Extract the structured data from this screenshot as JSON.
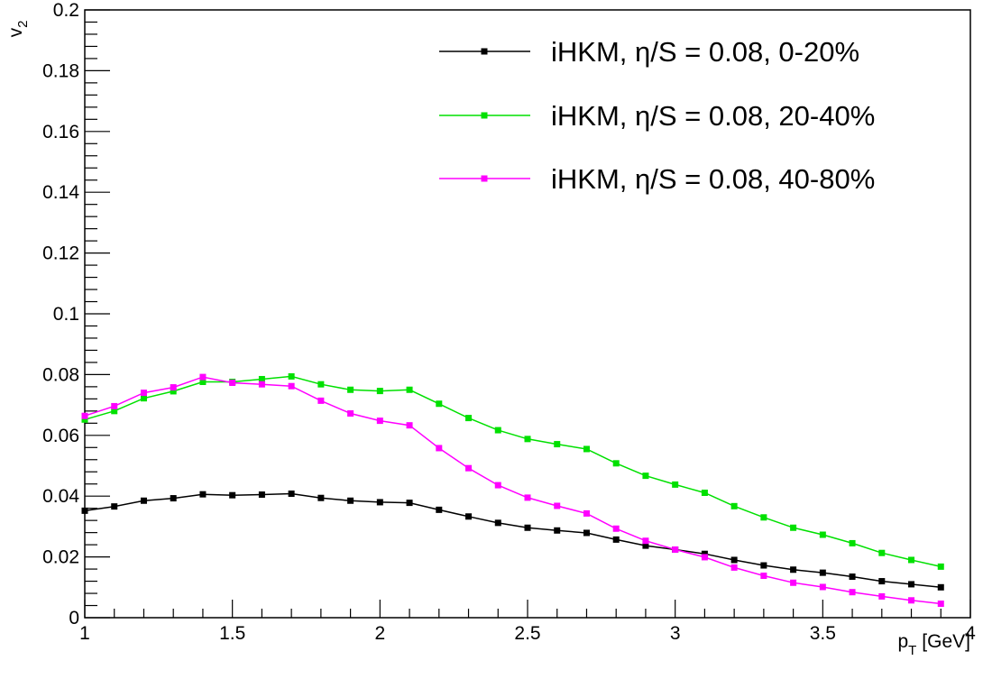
{
  "chart_data": {
    "type": "line",
    "title": "",
    "xlabel": {
      "main": "p",
      "sub": "T",
      "unit": "[GeV]"
    },
    "ylabel": {
      "main": "v",
      "sub": "2"
    },
    "xlim": [
      1,
      4
    ],
    "ylim": [
      0,
      0.2
    ],
    "x_ticks": [
      1,
      1.5,
      2,
      2.5,
      3,
      3.5,
      4
    ],
    "x_tick_labels": [
      "1",
      "1.5",
      "2",
      "2.5",
      "3",
      "3.5",
      "4"
    ],
    "y_ticks": [
      0,
      0.02,
      0.04,
      0.06,
      0.08,
      0.1,
      0.12,
      0.14,
      0.16,
      0.18,
      0.2
    ],
    "y_tick_labels": [
      "0",
      "0.02",
      "0.04",
      "0.06",
      "0.08",
      "0.1",
      "0.12",
      "0.14",
      "0.16",
      "0.18",
      "0.2"
    ],
    "grid": false,
    "legend_position": "top-right",
    "x": [
      1.0,
      1.1,
      1.2,
      1.3,
      1.4,
      1.5,
      1.6,
      1.7,
      1.8,
      1.9,
      2.0,
      2.1,
      2.2,
      2.3,
      2.4,
      2.5,
      2.6,
      2.7,
      2.8,
      2.9,
      3.0,
      3.1,
      3.2,
      3.3,
      3.4,
      3.5,
      3.6,
      3.7,
      3.8,
      3.9
    ],
    "series": [
      {
        "name": "iHKM, η/S = 0.08, 0-20%",
        "color": "#000000",
        "values": [
          0.0352,
          0.0366,
          0.0385,
          0.0393,
          0.0406,
          0.0403,
          0.0405,
          0.0408,
          0.0394,
          0.0385,
          0.038,
          0.0378,
          0.0355,
          0.0333,
          0.0312,
          0.0296,
          0.0287,
          0.0279,
          0.0257,
          0.0237,
          0.0224,
          0.021,
          0.019,
          0.0172,
          0.0158,
          0.0148,
          0.0135,
          0.012,
          0.011,
          0.01
        ]
      },
      {
        "name": "iHKM, η/S = 0.08, 20-40%",
        "color": "#00e000",
        "values": [
          0.0652,
          0.068,
          0.0722,
          0.0745,
          0.0776,
          0.0776,
          0.0785,
          0.0794,
          0.0768,
          0.075,
          0.0746,
          0.075,
          0.0704,
          0.0657,
          0.0617,
          0.0588,
          0.0571,
          0.0555,
          0.0508,
          0.0467,
          0.0438,
          0.0411,
          0.0367,
          0.033,
          0.0296,
          0.0273,
          0.0245,
          0.0213,
          0.019,
          0.0168
        ]
      },
      {
        "name": "iHKM, η/S = 0.08, 40-80%",
        "color": "#ff00ff",
        "values": [
          0.0664,
          0.0696,
          0.074,
          0.0758,
          0.0792,
          0.0773,
          0.0768,
          0.0762,
          0.0714,
          0.0672,
          0.0648,
          0.0633,
          0.0558,
          0.0492,
          0.0436,
          0.0395,
          0.0368,
          0.0343,
          0.0293,
          0.0253,
          0.0224,
          0.0199,
          0.0165,
          0.0138,
          0.0115,
          0.0101,
          0.0084,
          0.007,
          0.0057,
          0.0046
        ]
      }
    ]
  }
}
